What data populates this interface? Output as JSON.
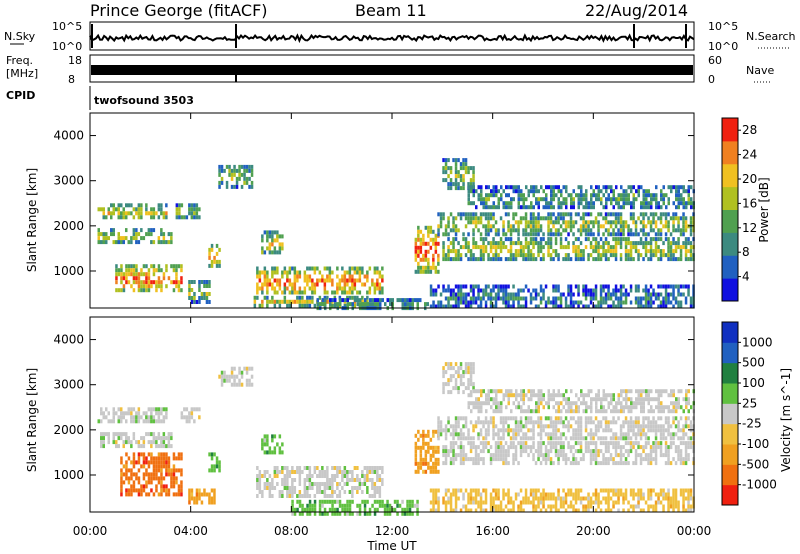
{
  "header": {
    "station": "Prince George (fitACF)",
    "beam": "Beam 11",
    "date": "22/Aug/2014"
  },
  "strip_panels": {
    "nsky_label": "N.Sky",
    "nsearch_label": "N.Search",
    "nsky_ticks": [
      "10^5",
      "10^0"
    ],
    "nsearch_ticks": [
      "10^5",
      "10^0"
    ],
    "freq_label": "Freq.",
    "freq_unit": "[MHz]",
    "freq_ticks": [
      "18",
      "8"
    ],
    "nave_label": "Nave",
    "nave_ticks": [
      "60",
      "0"
    ],
    "cpid_label": "CPID",
    "cpid_value": "twofsound 3503"
  },
  "chart_data": [
    {
      "type": "heatmap",
      "panel": "power",
      "ylabel": "Slant Range [km]",
      "xlabel": "",
      "xlim": [
        "00:00",
        "24:00"
      ],
      "ylim": [
        180,
        4500
      ],
      "y_ticks": [
        1000,
        2000,
        3000,
        4000
      ],
      "colorbar": {
        "label": "Power [dB]",
        "ticks": [
          4,
          8,
          12,
          16,
          20,
          24,
          28
        ],
        "range": [
          0,
          30
        ],
        "colors": [
          "#1010e0",
          "#2060c0",
          "#3c8a80",
          "#50a050",
          "#b0c020",
          "#f0c020",
          "#f08020",
          "#f02010"
        ]
      },
      "bands": [
        {
          "t0": 0.3,
          "t1": 3.0,
          "r0": 2150,
          "r1": 2500,
          "level": 0.55
        },
        {
          "t0": 0.3,
          "t1": 3.2,
          "r0": 1650,
          "r1": 1950,
          "level": 0.55
        },
        {
          "t0": 1.0,
          "t1": 3.6,
          "r0": 550,
          "r1": 1150,
          "level": 0.75
        },
        {
          "t0": 3.4,
          "t1": 4.3,
          "r0": 2200,
          "r1": 2500,
          "level": 0.45
        },
        {
          "t0": 3.9,
          "t1": 4.7,
          "r0": 350,
          "r1": 800,
          "level": 0.5
        },
        {
          "t0": 4.7,
          "t1": 5.1,
          "r0": 1100,
          "r1": 1600,
          "level": 0.7
        },
        {
          "t0": 5.1,
          "t1": 6.4,
          "r0": 2900,
          "r1": 3350,
          "level": 0.45
        },
        {
          "t0": 6.8,
          "t1": 7.6,
          "r0": 1400,
          "r1": 1900,
          "level": 0.55
        },
        {
          "t0": 6.6,
          "t1": 11.6,
          "r0": 500,
          "r1": 1100,
          "level": 0.75
        },
        {
          "t0": 6.5,
          "t1": 11.0,
          "r0": 250,
          "r1": 450,
          "level": 0.6
        },
        {
          "t0": 9.0,
          "t1": 13.5,
          "r0": 180,
          "r1": 400,
          "level": 0.35
        },
        {
          "t0": 12.9,
          "t1": 13.8,
          "r0": 1000,
          "r1": 2000,
          "level": 0.8
        },
        {
          "t0": 14.0,
          "t1": 15.2,
          "r0": 2800,
          "r1": 3500,
          "level": 0.4
        },
        {
          "t0": 13.8,
          "t1": 24.0,
          "r0": 1850,
          "r1": 2300,
          "level": 0.5
        },
        {
          "t0": 14.0,
          "t1": 24.0,
          "r0": 1300,
          "r1": 1750,
          "level": 0.55
        },
        {
          "t0": 15.0,
          "t1": 24.0,
          "r0": 2400,
          "r1": 2900,
          "level": 0.35
        },
        {
          "t0": 13.5,
          "t1": 24.0,
          "r0": 180,
          "r1": 700,
          "level": 0.25
        }
      ]
    },
    {
      "type": "heatmap",
      "panel": "velocity",
      "ylabel": "Slant Range [km]",
      "xlabel": "Time UT",
      "xlim": [
        "00:00",
        "24:00"
      ],
      "ylim": [
        180,
        4500
      ],
      "y_ticks": [
        1000,
        2000,
        3000,
        4000
      ],
      "x_ticks": [
        "00:00",
        "04:00",
        "08:00",
        "12:00",
        "16:00",
        "20:00",
        "00:00"
      ],
      "colorbar": {
        "label": "Velocity [m s^-1]",
        "ticks": [
          "1000",
          "500",
          "100",
          "25",
          "-25",
          "-100",
          "-500",
          "-1000"
        ],
        "colors": [
          "#1030c0",
          "#2060c0",
          "#208040",
          "#60c040",
          "#c8c8c8",
          "#f0c040",
          "#f0a020",
          "#f07010",
          "#f02010"
        ]
      },
      "bands": [
        {
          "t0": 0.3,
          "t1": 3.0,
          "r0": 2150,
          "r1": 2500,
          "v": 0
        },
        {
          "t0": 0.3,
          "t1": 3.2,
          "r0": 1650,
          "r1": 1950,
          "v": 0
        },
        {
          "t0": 1.2,
          "t1": 3.6,
          "r0": 550,
          "r1": 1500,
          "v": -500
        },
        {
          "t0": 3.6,
          "t1": 4.3,
          "r0": 2200,
          "r1": 2500,
          "v": 0
        },
        {
          "t0": 3.9,
          "t1": 5.0,
          "r0": 350,
          "r1": 700,
          "v": -100
        },
        {
          "t0": 4.7,
          "t1": 5.1,
          "r0": 1100,
          "r1": 1500,
          "v": 100
        },
        {
          "t0": 5.1,
          "t1": 6.4,
          "r0": 3000,
          "r1": 3400,
          "v": 0
        },
        {
          "t0": 6.8,
          "t1": 7.6,
          "r0": 1500,
          "r1": 1900,
          "v": 100
        },
        {
          "t0": 6.6,
          "t1": 11.6,
          "r0": 500,
          "r1": 1200,
          "v": 0
        },
        {
          "t0": 8.0,
          "t1": 13.0,
          "r0": 180,
          "r1": 450,
          "v": 100
        },
        {
          "t0": 12.9,
          "t1": 13.8,
          "r0": 1100,
          "r1": 2000,
          "v": -100
        },
        {
          "t0": 14.0,
          "t1": 15.2,
          "r0": 2800,
          "r1": 3500,
          "v": 0
        },
        {
          "t0": 13.8,
          "t1": 24.0,
          "r0": 1850,
          "r1": 2300,
          "v": 0
        },
        {
          "t0": 14.0,
          "t1": 24.0,
          "r0": 1300,
          "r1": 1750,
          "v": 0
        },
        {
          "t0": 15.0,
          "t1": 24.0,
          "r0": 2400,
          "r1": 2900,
          "v": 0
        },
        {
          "t0": 13.5,
          "t1": 24.0,
          "r0": 180,
          "r1": 700,
          "v": -25
        }
      ]
    }
  ]
}
